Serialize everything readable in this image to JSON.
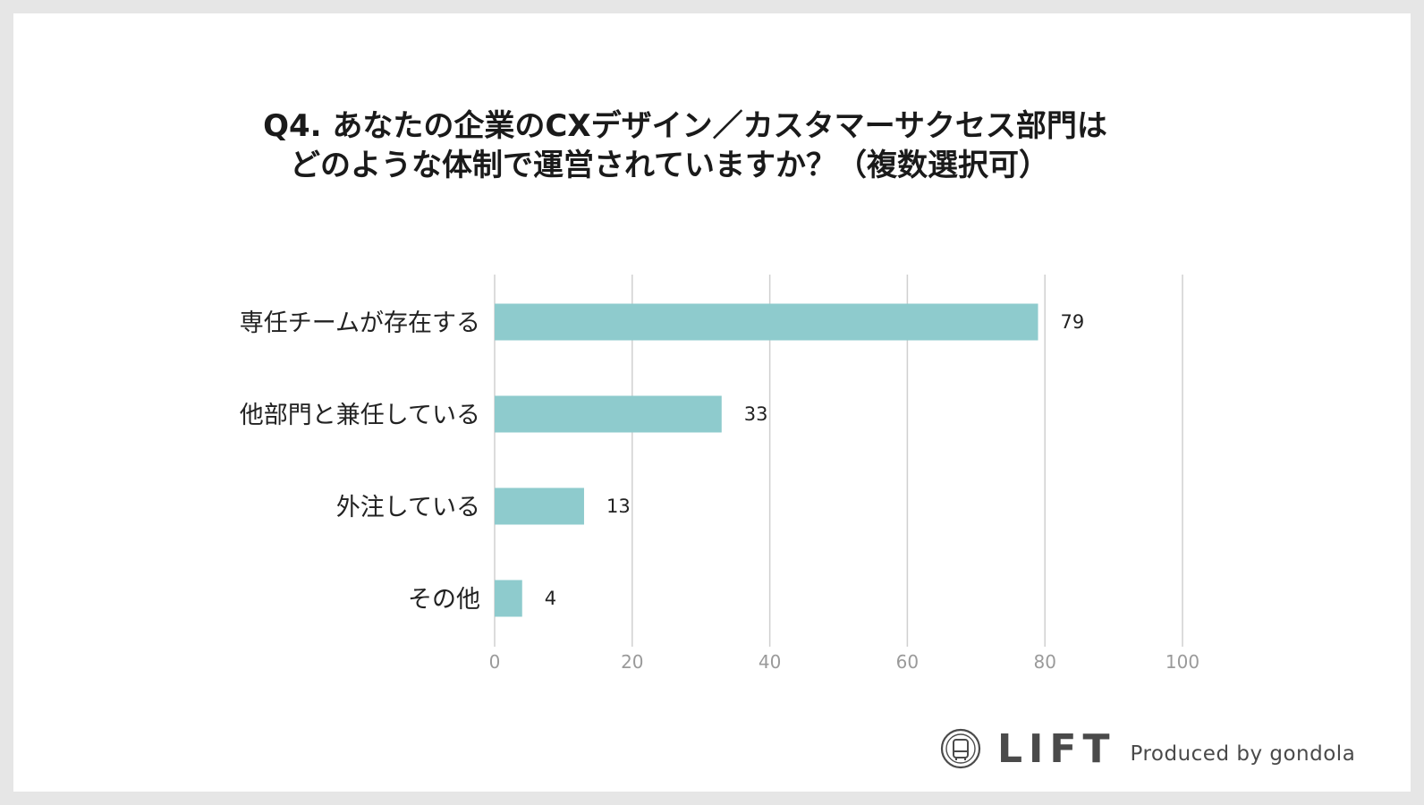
{
  "chart_data": {
    "type": "bar",
    "orientation": "horizontal",
    "title_line1": "Q4. あなたの企業のCXデザイン／カスタマーサクセス部門は",
    "title_line2": "どのような体制で運営されていますか？（複数選択可）",
    "categories": [
      "専任チームが存在する",
      "他部門と兼任している",
      "外注している",
      "その他"
    ],
    "values": [
      79,
      33,
      13,
      4
    ],
    "xlim": [
      0,
      100
    ],
    "xticks": [
      0,
      20,
      40,
      60,
      80,
      100
    ],
    "grid": true,
    "bar_color": "#8ecbcd",
    "grid_color": "#d0d0d0"
  },
  "branding": {
    "logo_text": "LIFT",
    "produced_by": "Produced by gondola"
  }
}
